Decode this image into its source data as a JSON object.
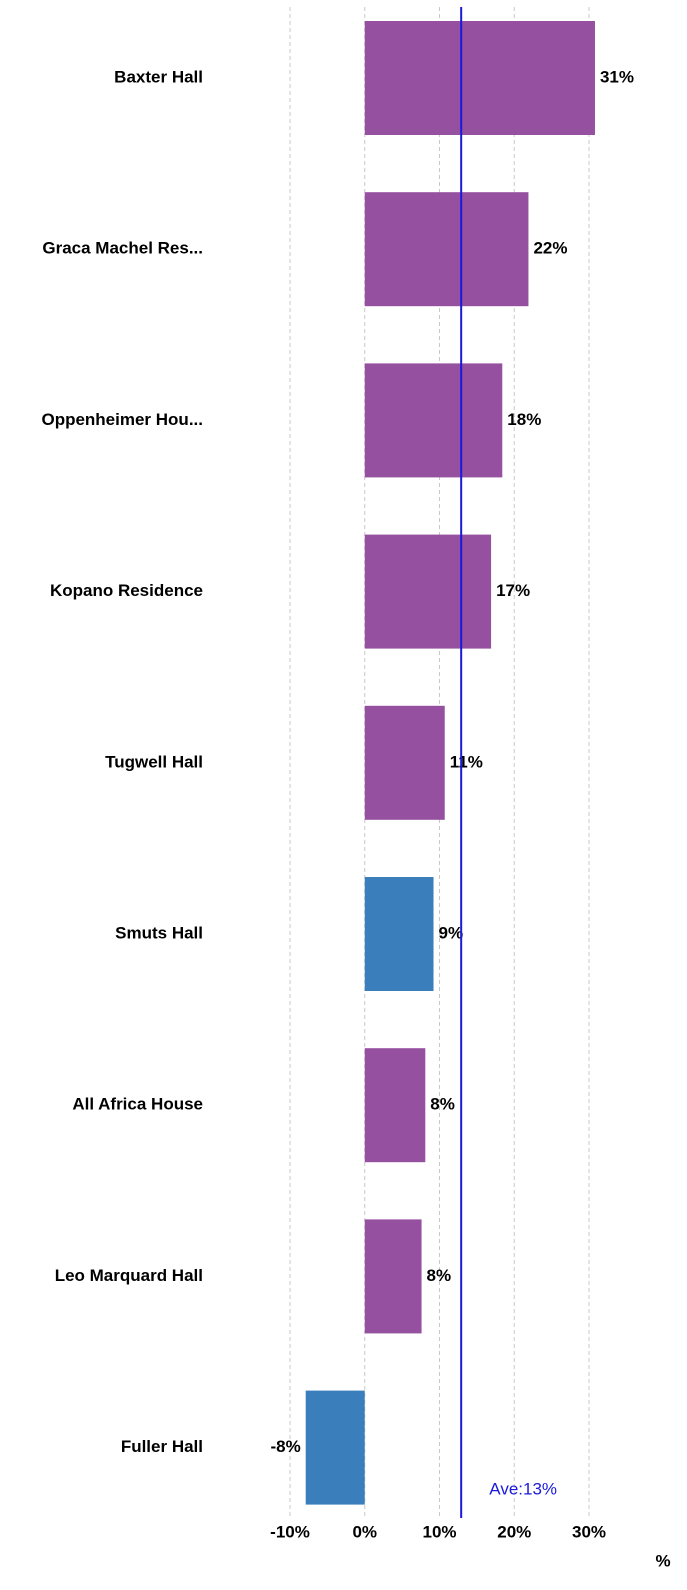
{
  "chart_data": {
    "type": "hbar",
    "categories": [
      "Baxter Hall",
      "Graca Machel Res...",
      "Oppenheimer Hou...",
      "Kopano Residence",
      "Tugwell Hall",
      "Smuts Hall",
      "All Africa House",
      "Leo Marquard Hall",
      "Fuller Hall"
    ],
    "values": [
      30.8,
      21.9,
      18.4,
      16.9,
      10.7,
      9.2,
      8.1,
      7.6,
      -7.9
    ],
    "value_labels": [
      "31%",
      "22%",
      "18%",
      "17%",
      "11%",
      "9%",
      "8%",
      "8%",
      "-8%"
    ],
    "colors": [
      "#9650a0",
      "#9650a0",
      "#9650a0",
      "#9650a0",
      "#9650a0",
      "#3a7fbb",
      "#9650a0",
      "#9650a0",
      "#3a7fbb"
    ],
    "xlim": [
      -10,
      30
    ],
    "xticks": [
      {
        "value": -10,
        "label": "-10%"
      },
      {
        "value": 0,
        "label": "0%"
      },
      {
        "value": 10,
        "label": "10%"
      },
      {
        "value": 20,
        "label": "20%"
      },
      {
        "value": 30,
        "label": "30%"
      }
    ],
    "grid": true,
    "average": {
      "value": 12.9,
      "label": "Ave:13%",
      "color": "#1a1adc"
    },
    "xlabel": "%"
  }
}
